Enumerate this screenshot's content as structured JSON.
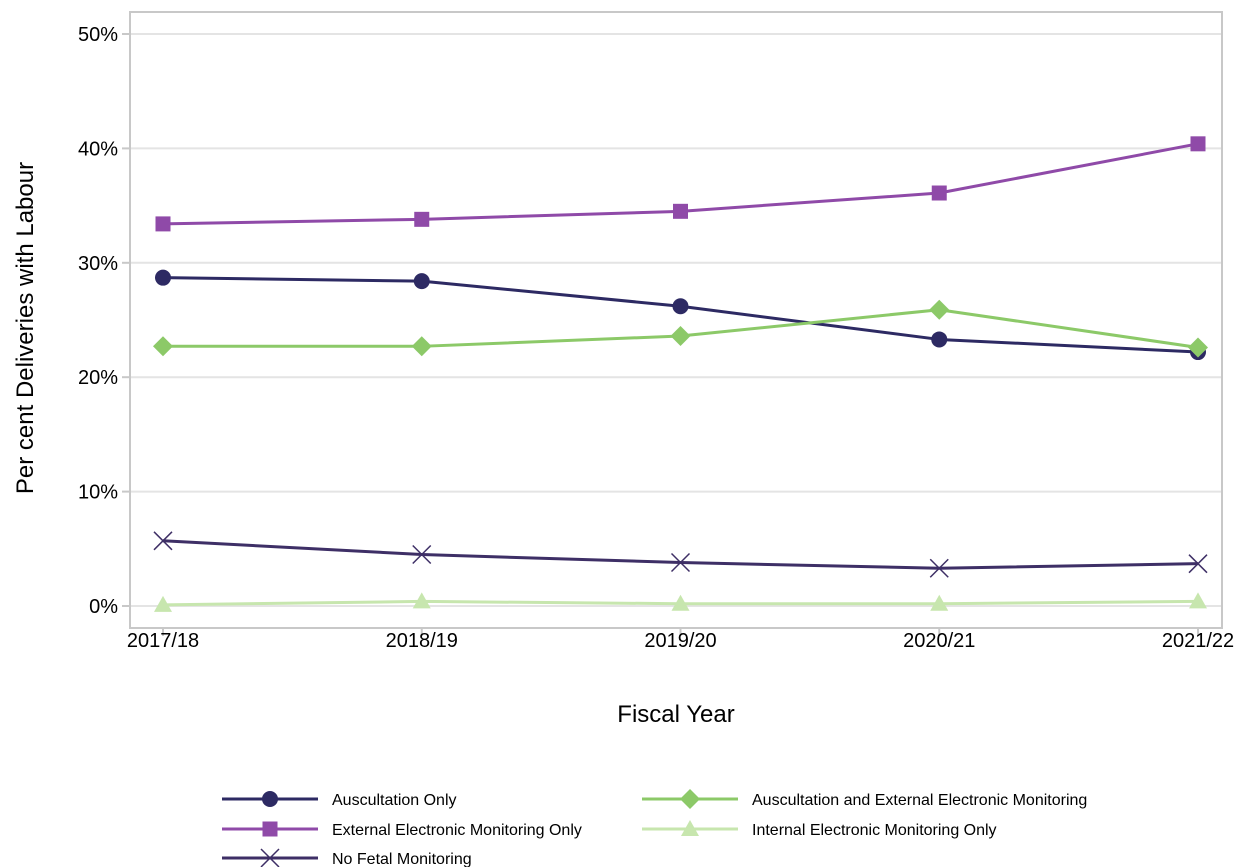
{
  "chart_data": {
    "type": "line",
    "title": "",
    "xlabel": "Fiscal Year",
    "ylabel": "Per cent Deliveries with Labour",
    "categories": [
      "2017/18",
      "2018/19",
      "2019/20",
      "2020/21",
      "2021/22"
    ],
    "ylim": [
      0,
      50
    ],
    "y_ticks": [
      0,
      10,
      20,
      30,
      40,
      50
    ],
    "y_tick_labels": [
      "0%",
      "10%",
      "20%",
      "30%",
      "40%",
      "50%"
    ],
    "grid": "horizontal",
    "legend_position": "bottom",
    "series": [
      {
        "name": "Auscultation Only",
        "color": "#2d2a63",
        "marker": "circle",
        "values": [
          28.7,
          28.4,
          26.2,
          23.3,
          22.2
        ]
      },
      {
        "name": "External Electronic Monitoring Only",
        "color": "#8f4aa8",
        "marker": "square",
        "values": [
          33.4,
          33.8,
          34.5,
          36.1,
          40.4
        ]
      },
      {
        "name": "No Fetal Monitoring",
        "color": "#3e2f66",
        "marker": "x",
        "values": [
          5.7,
          4.5,
          3.8,
          3.3,
          3.7
        ]
      },
      {
        "name": "Auscultation and External Electronic Monitoring",
        "color": "#8cc968",
        "marker": "diamond",
        "values": [
          22.7,
          22.7,
          23.6,
          25.9,
          22.6
        ]
      },
      {
        "name": "Internal Electronic Monitoring Only",
        "color": "#c7e6ae",
        "marker": "triangle",
        "values": [
          0.1,
          0.4,
          0.2,
          0.2,
          0.4
        ]
      }
    ]
  }
}
